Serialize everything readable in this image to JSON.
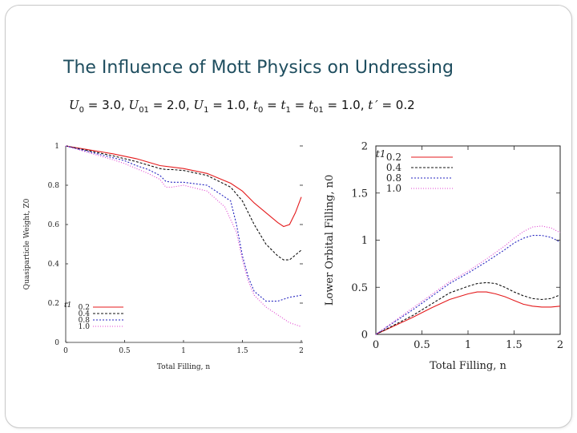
{
  "slide": {
    "title": "The Influence of Mott Physics on Undressing",
    "params": [
      {
        "sym": "U",
        "sub": "0",
        "val": " = 3.0, "
      },
      {
        "sym": "U",
        "sub": "01",
        "val": " = 2.0, "
      },
      {
        "sym": "U",
        "sub": "1",
        "val": " = 1.0, "
      },
      {
        "sym": "t",
        "sub": "0",
        "val": " = "
      },
      {
        "sym": "t",
        "sub": "1",
        "val": " = "
      },
      {
        "sym": "t",
        "sub": "01",
        "val": " = 1.0, "
      },
      {
        "sym": "t ′",
        "sub": "",
        "val": " = 0.2"
      }
    ]
  },
  "chart_data": [
    {
      "type": "line",
      "xlabel": "Total Filling, n",
      "ylabel": "Quasiparticle Weight, Z0",
      "xlim": [
        0,
        2
      ],
      "ylim": [
        0,
        1
      ],
      "xticks": [
        "0",
        "0.5",
        "1",
        "1.5",
        "2"
      ],
      "yticks": [
        "0",
        "0.2",
        "0.4",
        "0.6",
        "0.8",
        "1"
      ],
      "xtick_values": [
        0,
        0.5,
        1,
        1.5,
        2
      ],
      "ytick_values": [
        0,
        0.2,
        0.4,
        0.6,
        0.8,
        1
      ],
      "legend_title": "t1",
      "legend_placement": "bottom-left",
      "grid": false,
      "series": [
        {
          "name": "0.2",
          "color": "#e41a1c",
          "dash": "",
          "x": [
            0,
            0.2,
            0.4,
            0.6,
            0.8,
            1.0,
            1.2,
            1.4,
            1.5,
            1.6,
            1.7,
            1.8,
            1.85,
            1.9,
            1.95,
            2.0
          ],
          "y": [
            1.0,
            0.98,
            0.96,
            0.935,
            0.9,
            0.885,
            0.86,
            0.81,
            0.77,
            0.71,
            0.66,
            0.61,
            0.59,
            0.6,
            0.66,
            0.74
          ]
        },
        {
          "name": "0.4",
          "color": "#111111",
          "dash": "3,2",
          "x": [
            0,
            0.2,
            0.4,
            0.5,
            0.6,
            0.8,
            0.85,
            0.9,
            1.0,
            1.2,
            1.4,
            1.5,
            1.6,
            1.7,
            1.8,
            1.85,
            1.9,
            2.0
          ],
          "y": [
            1.0,
            0.975,
            0.95,
            0.935,
            0.92,
            0.885,
            0.88,
            0.88,
            0.875,
            0.85,
            0.79,
            0.72,
            0.6,
            0.5,
            0.44,
            0.42,
            0.42,
            0.47
          ]
        },
        {
          "name": "0.8",
          "color": "#2525c0",
          "dash": "2,2",
          "x": [
            0,
            0.2,
            0.4,
            0.5,
            0.6,
            0.7,
            0.8,
            0.85,
            0.9,
            1.0,
            1.2,
            1.4,
            1.45,
            1.5,
            1.55,
            1.6,
            1.7,
            1.8,
            1.9,
            2.0
          ],
          "y": [
            1.0,
            0.97,
            0.94,
            0.925,
            0.9,
            0.88,
            0.85,
            0.82,
            0.815,
            0.815,
            0.8,
            0.72,
            0.6,
            0.44,
            0.33,
            0.26,
            0.21,
            0.21,
            0.23,
            0.24
          ]
        },
        {
          "name": "1.0",
          "color": "#e040d0",
          "dash": "1,2",
          "x": [
            0,
            0.2,
            0.4,
            0.5,
            0.6,
            0.7,
            0.8,
            0.85,
            0.9,
            1.0,
            1.2,
            1.35,
            1.45,
            1.5,
            1.55,
            1.6,
            1.7,
            1.8,
            1.9,
            2.0
          ],
          "y": [
            1.0,
            0.965,
            0.93,
            0.91,
            0.885,
            0.86,
            0.83,
            0.79,
            0.79,
            0.8,
            0.77,
            0.69,
            0.56,
            0.42,
            0.31,
            0.24,
            0.18,
            0.14,
            0.1,
            0.08
          ]
        }
      ]
    },
    {
      "type": "line",
      "xlabel": "Total Filling, n",
      "ylabel": "Lower Orbital Filling, n0",
      "xlim": [
        0,
        2
      ],
      "ylim": [
        0,
        2
      ],
      "xticks": [
        "0",
        "0.5",
        "1",
        "1.5",
        "2"
      ],
      "yticks": [
        "0",
        "0.5",
        "1",
        "1.5",
        "2"
      ],
      "xtick_values": [
        0,
        0.5,
        1,
        1.5,
        2
      ],
      "ytick_values": [
        0,
        0.5,
        1,
        1.5,
        2
      ],
      "legend_title": "t1",
      "legend_placement": "top-left",
      "grid": false,
      "series": [
        {
          "name": "0.2",
          "color": "#e41a1c",
          "dash": "",
          "x": [
            0,
            0.2,
            0.4,
            0.6,
            0.8,
            1.0,
            1.1,
            1.2,
            1.3,
            1.4,
            1.5,
            1.6,
            1.7,
            1.8,
            1.9,
            2.0
          ],
          "y": [
            0,
            0.09,
            0.18,
            0.28,
            0.37,
            0.43,
            0.45,
            0.45,
            0.43,
            0.4,
            0.36,
            0.32,
            0.3,
            0.29,
            0.29,
            0.3
          ]
        },
        {
          "name": "0.4",
          "color": "#111111",
          "dash": "3,2",
          "x": [
            0,
            0.2,
            0.4,
            0.6,
            0.8,
            1.0,
            1.1,
            1.2,
            1.3,
            1.4,
            1.5,
            1.6,
            1.7,
            1.8,
            1.9,
            2.0
          ],
          "y": [
            0,
            0.1,
            0.2,
            0.32,
            0.44,
            0.51,
            0.54,
            0.55,
            0.54,
            0.5,
            0.45,
            0.41,
            0.38,
            0.37,
            0.38,
            0.42
          ]
        },
        {
          "name": "0.8",
          "color": "#2525c0",
          "dash": "2,2",
          "x": [
            0,
            0.2,
            0.4,
            0.6,
            0.8,
            1.0,
            1.2,
            1.4,
            1.5,
            1.6,
            1.7,
            1.8,
            1.9,
            2.0
          ],
          "y": [
            0,
            0.13,
            0.26,
            0.4,
            0.54,
            0.65,
            0.77,
            0.9,
            0.97,
            1.02,
            1.05,
            1.05,
            1.03,
            0.98
          ]
        },
        {
          "name": "1.0",
          "color": "#e040d0",
          "dash": "1,2",
          "x": [
            0,
            0.2,
            0.4,
            0.6,
            0.8,
            1.0,
            1.2,
            1.4,
            1.5,
            1.6,
            1.7,
            1.8,
            1.9,
            2.0
          ],
          "y": [
            0,
            0.14,
            0.28,
            0.42,
            0.56,
            0.67,
            0.8,
            0.94,
            1.02,
            1.09,
            1.14,
            1.15,
            1.13,
            1.08
          ]
        }
      ]
    }
  ]
}
